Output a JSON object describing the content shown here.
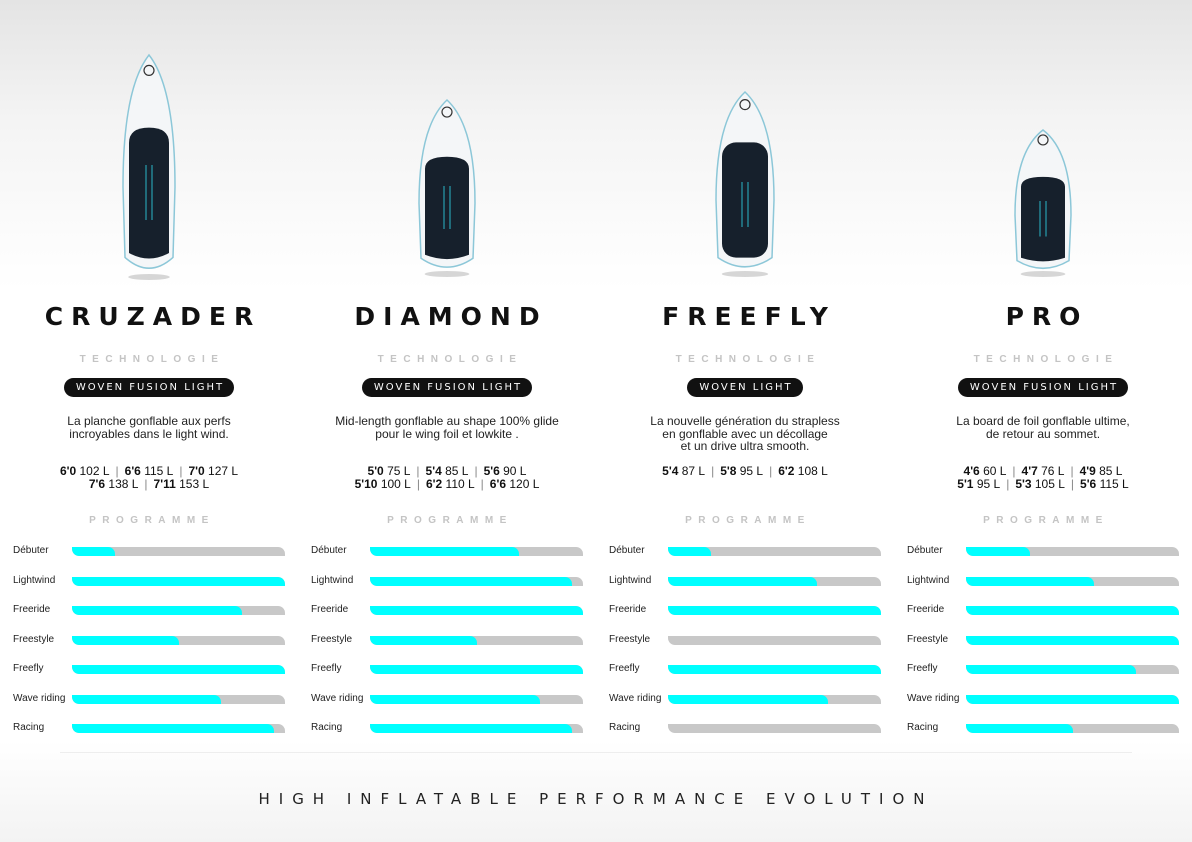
{
  "colors": {
    "fill": "#00ffff",
    "track": "#c8c8c8"
  },
  "labels": {
    "technologie": "TECHNOLOGIE",
    "programme": "PROGRAMME"
  },
  "footer": "HIGH INFLATABLE PERFORMANCE EVOLUTION",
  "boards": [
    {
      "name": "CRUZADER",
      "technology": "WOVEN FUSION LIGHT",
      "description": [
        "La planche gonflable aux perfs",
        "incroyables dans le light wind."
      ],
      "sizes": [
        [
          [
            "6'0",
            "102 L"
          ],
          [
            "6'6",
            "115 L"
          ],
          [
            "7'0",
            "127 L"
          ]
        ],
        [
          [
            "7'6",
            "138 L"
          ],
          [
            "7'11",
            "153 L"
          ]
        ]
      ],
      "program": [
        {
          "label": "Débuter",
          "value": 0.2
        },
        {
          "label": "Lightwind",
          "value": 1.0
        },
        {
          "label": "Freeride",
          "value": 0.8
        },
        {
          "label": "Freestyle",
          "value": 0.5
        },
        {
          "label": "Freefly",
          "value": 1.0
        },
        {
          "label": "Wave riding",
          "value": 0.7
        },
        {
          "label": "Racing",
          "value": 0.95
        }
      ]
    },
    {
      "name": "DIAMOND",
      "technology": "WOVEN FUSION LIGHT",
      "description": [
        "Mid-length gonflable au shape 100% glide",
        "pour le wing foil et lowkite ."
      ],
      "sizes": [
        [
          [
            "5'0",
            "75 L"
          ],
          [
            "5'4",
            "85 L"
          ],
          [
            "5'6",
            "90 L"
          ]
        ],
        [
          [
            "5'10",
            "100 L"
          ],
          [
            "6'2",
            "110 L"
          ],
          [
            "6'6",
            "120 L"
          ]
        ]
      ],
      "program": [
        {
          "label": "Débuter",
          "value": 0.7
        },
        {
          "label": "Lightwind",
          "value": 0.95
        },
        {
          "label": "Freeride",
          "value": 1.0
        },
        {
          "label": "Freestyle",
          "value": 0.5
        },
        {
          "label": "Freefly",
          "value": 1.0
        },
        {
          "label": "Wave riding",
          "value": 0.8
        },
        {
          "label": "Racing",
          "value": 0.95
        }
      ]
    },
    {
      "name": "FREEFLY",
      "technology": "WOVEN LIGHT",
      "description": [
        "La nouvelle génération du strapless",
        "en gonflable avec un décollage",
        "et un drive ultra smooth."
      ],
      "sizes": [
        [
          [
            "5'4",
            "87 L"
          ],
          [
            "5'8",
            "95 L"
          ],
          [
            "6'2",
            "108 L"
          ]
        ]
      ],
      "program": [
        {
          "label": "Débuter",
          "value": 0.2
        },
        {
          "label": "Lightwind",
          "value": 0.7
        },
        {
          "label": "Freeride",
          "value": 1.0
        },
        {
          "label": "Freestyle",
          "value": 0
        },
        {
          "label": "Freefly",
          "value": 1.0
        },
        {
          "label": "Wave riding",
          "value": 0.75
        },
        {
          "label": "Racing",
          "value": 0
        }
      ]
    },
    {
      "name": "PRO",
      "technology": "WOVEN FUSION LIGHT",
      "description": [
        "La board de foil gonflable ultime,",
        "de retour au sommet."
      ],
      "sizes": [
        [
          [
            "4'6",
            "60 L"
          ],
          [
            "4'7",
            "76 L"
          ],
          [
            "4'9",
            "85 L"
          ]
        ],
        [
          [
            "5'1",
            "95 L"
          ],
          [
            "5'3",
            "105 L"
          ],
          [
            "5'6",
            "115 L"
          ]
        ]
      ],
      "program": [
        {
          "label": "Débuter",
          "value": 0.3
        },
        {
          "label": "Lightwind",
          "value": 0.6
        },
        {
          "label": "Freeride",
          "value": 1.0
        },
        {
          "label": "Freestyle",
          "value": 1.0
        },
        {
          "label": "Freefly",
          "value": 0.8
        },
        {
          "label": "Wave riding",
          "value": 1.0
        },
        {
          "label": "Racing",
          "value": 0.5
        }
      ]
    }
  ]
}
